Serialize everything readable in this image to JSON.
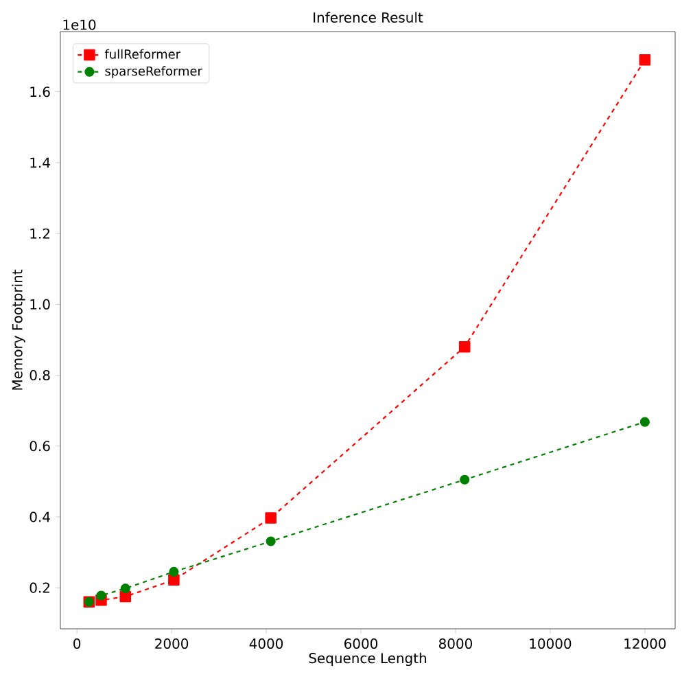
{
  "chart_data": {
    "type": "line",
    "title": "Inference Result",
    "xlabel": "Sequence Length",
    "ylabel": "Memory Footprint",
    "annotations": [
      "1e10"
    ],
    "xlim": [
      -350,
      12640
    ],
    "ylim": [
      0.084,
      1.77
    ],
    "xticks": [
      0,
      2000,
      4000,
      6000,
      8000,
      10000,
      12000
    ],
    "yticks": [
      0.2,
      0.4,
      0.6,
      0.8,
      {
        "value": 1.0,
        "label": "1.0"
      },
      1.2,
      1.4,
      1.6
    ],
    "legend": "top left",
    "grid": false,
    "line_style": "dashed",
    "series": [
      {
        "name": "fullReformer",
        "color": "#ff0000",
        "marker": "square",
        "x": [
          256,
          512,
          1024,
          2048,
          4096,
          8192,
          12000
        ],
        "values": [
          0.16,
          0.165,
          0.175,
          0.222,
          0.397,
          0.88,
          1.69
        ]
      },
      {
        "name": "sparseReformer",
        "color": "#008000",
        "marker": "circle",
        "x": [
          256,
          512,
          1024,
          2048,
          4096,
          8192,
          12000
        ],
        "values": [
          0.16,
          0.178,
          0.198,
          0.245,
          0.331,
          0.505,
          0.668
        ]
      }
    ]
  }
}
